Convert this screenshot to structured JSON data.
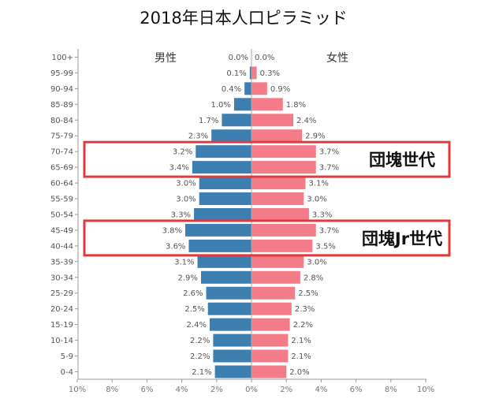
{
  "chart_data": {
    "type": "bar",
    "title": "2018年日本人口ピラミッド",
    "male_label": "男性",
    "female_label": "女性",
    "categories": [
      "100+",
      "95-99",
      "90-94",
      "85-89",
      "80-84",
      "75-79",
      "70-74",
      "65-69",
      "60-64",
      "55-59",
      "50-54",
      "45-49",
      "40-44",
      "35-39",
      "30-34",
      "25-29",
      "20-24",
      "15-19",
      "10-14",
      "5-9",
      "0-4"
    ],
    "series": [
      {
        "name": "男性",
        "color": "#3e7fb1",
        "values": [
          0.0,
          0.1,
          0.4,
          1.0,
          1.7,
          2.3,
          3.2,
          3.4,
          3.0,
          3.0,
          3.3,
          3.8,
          3.6,
          3.1,
          2.9,
          2.6,
          2.5,
          2.4,
          2.2,
          2.2,
          2.1
        ]
      },
      {
        "name": "女性",
        "color": "#f47c89",
        "values": [
          0.0,
          0.3,
          0.9,
          1.8,
          2.4,
          2.9,
          3.7,
          3.7,
          3.1,
          3.0,
          3.3,
          3.7,
          3.5,
          3.0,
          2.8,
          2.5,
          2.3,
          2.2,
          2.1,
          2.1,
          2.0
        ]
      }
    ],
    "xticks": [
      "10%",
      "8%",
      "6%",
      "4%",
      "2%",
      "0%",
      "2%",
      "4%",
      "6%",
      "8%",
      "10%"
    ],
    "xlim": [
      -10,
      10
    ],
    "annotations": [
      {
        "label": "団塊世代",
        "rows": [
          "70-74",
          "65-69"
        ],
        "color": "#e03a3e"
      },
      {
        "label": "団塊Jr世代",
        "rows": [
          "45-49",
          "40-44"
        ],
        "color": "#e03a3e"
      }
    ]
  }
}
